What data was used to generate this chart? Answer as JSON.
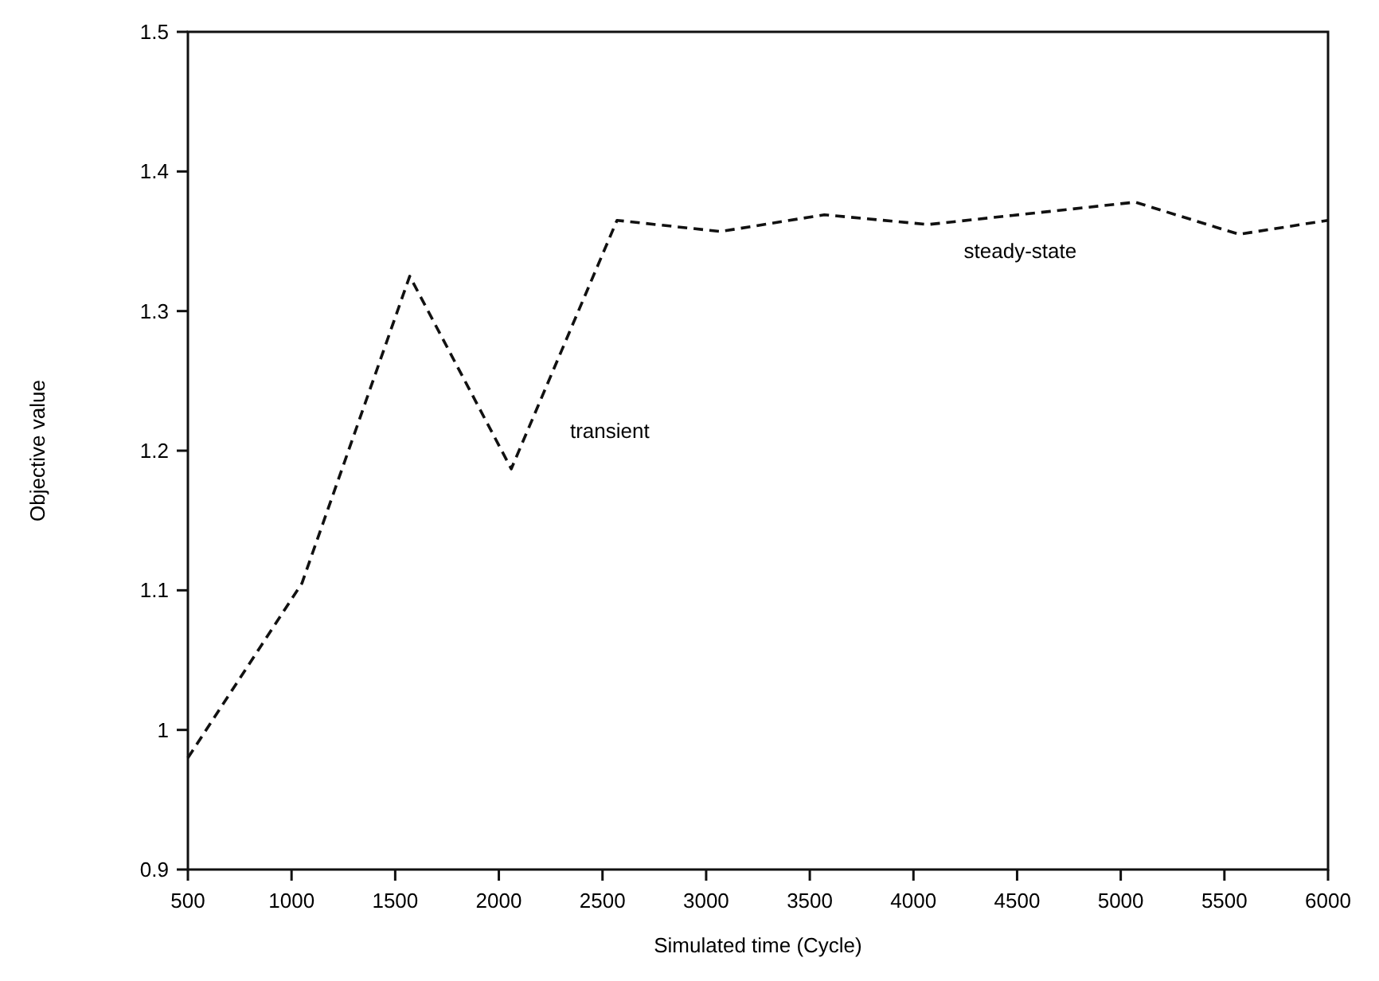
{
  "chart_data": {
    "type": "line",
    "xlabel": "Simulated time (Cycle)",
    "ylabel": "Objective value",
    "x": [
      500,
      1050,
      1570,
      2060,
      2570,
      3070,
      3570,
      4070,
      5070,
      5570,
      6000
    ],
    "values": [
      0.98,
      1.105,
      1.325,
      1.187,
      1.365,
      1.357,
      1.369,
      1.362,
      1.378,
      1.355,
      1.365
    ],
    "color": "#111111",
    "line_style": "dashed",
    "marker": "none",
    "grid": false,
    "xlim": [
      500,
      6000
    ],
    "xticks": [
      500,
      1000,
      1500,
      2000,
      2500,
      3000,
      3500,
      4000,
      4500,
      5000,
      5500,
      6000
    ],
    "ylim": [
      0.9,
      1.5
    ],
    "yticks": [
      0.9,
      1,
      1.1,
      1.2,
      1.3,
      1.4,
      1.5
    ],
    "annotations": [
      "transient",
      "steady-state"
    ]
  }
}
